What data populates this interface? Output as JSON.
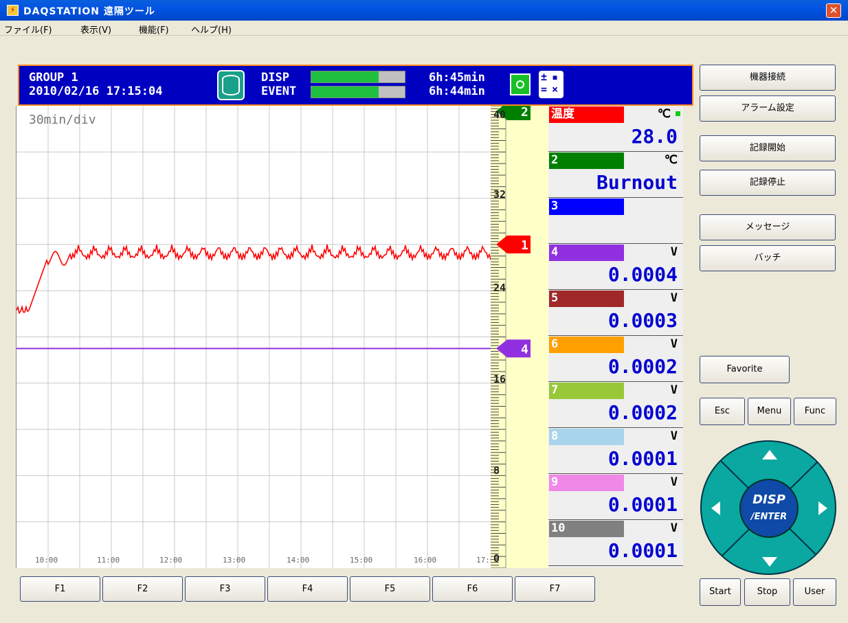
{
  "window": {
    "title": "DAQSTATION 遠隔ツール",
    "close_glyph": "✕"
  },
  "menu": [
    {
      "label": "ファイル(F)"
    },
    {
      "label": "表示(V)"
    },
    {
      "label": "機能(F)"
    },
    {
      "label": "ヘルプ(H)"
    }
  ],
  "status": {
    "group": "GROUP 1",
    "datetime": "2010/02/16 17:15:04",
    "disp_label": "DISP",
    "event_label": "EVENT",
    "disp_time": "6h:45min",
    "event_time": "6h:44min",
    "disp_fill": 0.72,
    "event_fill": 0.72,
    "icons": [
      "memory-icon",
      "camera-icon",
      "calculation-icon"
    ]
  },
  "trend": {
    "time_div": "30min/div",
    "time_labels": [
      "10:00",
      "11:00",
      "12:00",
      "13:00",
      "14:00",
      "15:00",
      "16:00",
      "17:0"
    ],
    "scale_labels": [
      "40",
      "32",
      "24",
      "16",
      "8",
      "0"
    ],
    "markers": [
      {
        "channel": "1",
        "color": "#ff0000",
        "value": 28.0
      },
      {
        "channel": "4",
        "color": "#9030e0",
        "value": 19.0
      },
      {
        "channel": "2",
        "color": "#008000",
        "value": 40.0
      }
    ],
    "series_colors": {
      "ch1": "#ff0000",
      "ch4": "#9030e0"
    }
  },
  "channels": [
    {
      "tag": "温度",
      "color": "#ff0000",
      "unit": "℃",
      "value": "28.0"
    },
    {
      "tag": "2",
      "color": "#008000",
      "unit": "℃",
      "value": "Burnout"
    },
    {
      "tag": "3",
      "color": "#0000ff",
      "unit": "",
      "value": ""
    },
    {
      "tag": "4",
      "color": "#9030e0",
      "unit": "V",
      "value": "0.0004"
    },
    {
      "tag": "5",
      "color": "#a02828",
      "unit": "V",
      "value": "0.0003"
    },
    {
      "tag": "6",
      "color": "#ffa000",
      "unit": "V",
      "value": "0.0002"
    },
    {
      "tag": "7",
      "color": "#98c838",
      "unit": "V",
      "value": "0.0002"
    },
    {
      "tag": "8",
      "color": "#a8d4ec",
      "unit": "V",
      "value": "0.0001"
    },
    {
      "tag": "9",
      "color": "#f088e8",
      "unit": "V",
      "value": "0.0001"
    },
    {
      "tag": "10",
      "color": "#808080",
      "unit": "V",
      "value": "0.0001"
    }
  ],
  "fkeys": [
    "F1",
    "F2",
    "F3",
    "F4",
    "F5",
    "F6",
    "F7"
  ],
  "right_buttons": {
    "connect": "機器接続",
    "alarm": "アラーム設定",
    "rec_start": "記録開始",
    "rec_stop": "記録停止",
    "message": "メッセージ",
    "batch": "バッチ",
    "favorite": "Favorite",
    "esc": "Esc",
    "menu": "Menu",
    "func": "Func",
    "start": "Start",
    "stop": "Stop",
    "user": "User"
  },
  "dpad": {
    "line1": "DISP",
    "line2": "/ENTER"
  }
}
